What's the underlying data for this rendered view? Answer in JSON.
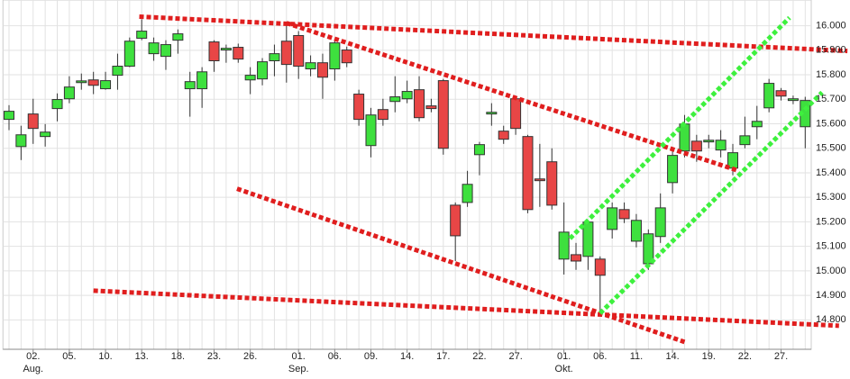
{
  "chart_data": {
    "type": "candlestick",
    "categories": [
      null,
      null,
      "02.",
      null,
      null,
      "05.",
      null,
      null,
      "10.",
      null,
      null,
      "13.",
      null,
      null,
      "18.",
      null,
      null,
      "23.",
      null,
      null,
      "26.",
      null,
      null,
      null,
      "01.",
      null,
      null,
      "06.",
      null,
      null,
      "09.",
      null,
      null,
      "14.",
      null,
      null,
      "17.",
      null,
      null,
      "22.",
      null,
      null,
      "27.",
      null,
      null,
      null,
      "01.",
      null,
      null,
      "06.",
      null,
      null,
      "11.",
      null,
      null,
      "14.",
      null,
      null,
      "19.",
      null,
      null,
      "22.",
      null,
      null,
      "27.",
      null,
      null
    ],
    "month_labels": [
      {
        "index": 2,
        "label": "Aug."
      },
      {
        "index": 24,
        "label": "Sep."
      },
      {
        "index": 46,
        "label": "Okt."
      }
    ],
    "open": [
      15618,
      15507,
      15640,
      15548,
      15662,
      15702,
      15768,
      15779,
      15743,
      15798,
      15835,
      15949,
      15886,
      15875,
      15941,
      15743,
      15743,
      15934,
      15901,
      15912,
      15779,
      15783,
      15857,
      15937,
      15960,
      15824,
      15849,
      15824,
      15901,
      15721,
      15511,
      15658,
      15691,
      15702,
      15739,
      15673,
      15776,
      15268,
      15279,
      15474,
      15640,
      15570,
      15702,
      15548,
      15375,
      15445,
      15048,
      15066,
      15059,
      15048,
      15169,
      15250,
      15121,
      15029,
      15140,
      15360,
      15489,
      15529,
      15526,
      15493,
      15419,
      15515,
      15588,
      15665,
      15735,
      15695,
      15588
    ],
    "high": [
      15676,
      15592,
      15702,
      15599,
      15724,
      15794,
      15805,
      15812,
      15812,
      15886,
      15952,
      16026,
      15952,
      15941,
      15985,
      15812,
      15831,
      15941,
      15923,
      15927,
      15831,
      15868,
      15923,
      16015,
      15978,
      15879,
      15886,
      15941,
      15915,
      15739,
      15665,
      15702,
      15794,
      15776,
      15794,
      15702,
      15783,
      15279,
      15408,
      15526,
      15684,
      15592,
      15710,
      15555,
      15518,
      15500,
      15279,
      15114,
      15206,
      15059,
      15279,
      15279,
      15232,
      15169,
      15316,
      15500,
      15636,
      15555,
      15555,
      15574,
      15518,
      15629,
      15673,
      15783,
      15746,
      15715,
      15710
    ],
    "low": [
      15574,
      15452,
      15518,
      15507,
      15610,
      15684,
      15739,
      15721,
      15739,
      15739,
      15831,
      15941,
      15857,
      15820,
      15886,
      15629,
      15665,
      15812,
      15849,
      15849,
      15721,
      15757,
      15794,
      15768,
      15783,
      15794,
      15702,
      15776,
      15831,
      15592,
      15463,
      15592,
      15647,
      15684,
      15610,
      15647,
      15474,
      15040,
      15261,
      15390,
      15592,
      15518,
      15555,
      15235,
      15261,
      15250,
      14985,
      15004,
      15004,
      14838,
      15132,
      15195,
      15096,
      15004,
      15114,
      15316,
      15463,
      15445,
      15500,
      15463,
      15390,
      15500,
      15537,
      15647,
      15695,
      15680,
      15500
    ],
    "close": [
      15651,
      15555,
      15581,
      15566,
      15699,
      15750,
      15775,
      15757,
      15776,
      15835,
      15937,
      15978,
      15930,
      15923,
      15967,
      15772,
      15812,
      15857,
      15908,
      15864,
      15798,
      15853,
      15886,
      15842,
      15835,
      15849,
      15790,
      15930,
      15849,
      15618,
      15636,
      15618,
      15710,
      15732,
      15625,
      15662,
      15500,
      15143,
      15353,
      15515,
      15647,
      15537,
      15581,
      15250,
      15368,
      15268,
      15158,
      15040,
      15199,
      14982,
      15257,
      15213,
      15206,
      15151,
      15257,
      15471,
      15599,
      15489,
      15533,
      15533,
      15482,
      15551,
      15610,
      15765,
      15713,
      15702,
      15695
    ],
    "up_color": "#3ee03e",
    "down_color": "#e84646",
    "ylim": [
      14680,
      16105
    ],
    "yticks": [
      {
        "value": 14800,
        "label": "14.800"
      },
      {
        "value": 14900,
        "label": "14.900"
      },
      {
        "value": 15000,
        "label": "15.000"
      },
      {
        "value": 15100,
        "label": "15.100"
      },
      {
        "value": 15200,
        "label": "15.200"
      },
      {
        "value": 15300,
        "label": "15.300"
      },
      {
        "value": 15400,
        "label": "15.400"
      },
      {
        "value": 15500,
        "label": "15.500"
      },
      {
        "value": 15600,
        "label": "15.600"
      },
      {
        "value": 15700,
        "label": "15.700"
      },
      {
        "value": 15800,
        "label": "15.800"
      },
      {
        "value": 15900,
        "label": "15.900"
      },
      {
        "value": 16000,
        "label": "16.000"
      }
    ],
    "grid": true,
    "trendlines": [
      {
        "color": "#e01e1e",
        "x": [
          10.8,
          69.5
        ],
        "y": [
          16037,
          15897
        ]
      },
      {
        "color": "#e01e1e",
        "x": [
          23,
          60.5
        ],
        "y": [
          16011,
          15408
        ]
      },
      {
        "color": "#e01e1e",
        "x": [
          18.9,
          56
        ],
        "y": [
          15335,
          14710
        ]
      },
      {
        "color": "#e01e1e",
        "x": [
          7,
          68.8
        ],
        "y": [
          14919,
          14776
        ]
      },
      {
        "color": "#3ef03e",
        "x": [
          46.5,
          64.7
        ],
        "y": [
          15132,
          16033
        ]
      },
      {
        "color": "#3ef03e",
        "x": [
          49,
          67.4
        ],
        "y": [
          14827,
          15728
        ]
      }
    ]
  }
}
